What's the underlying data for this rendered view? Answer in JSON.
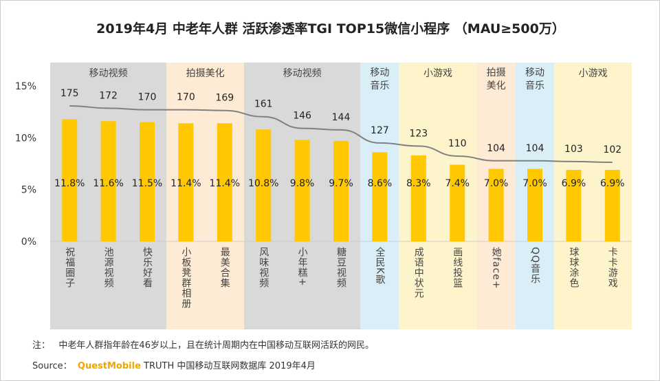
{
  "title": "2019年4月 中老年人群 活跃渗透率TGI TOP15微信小程序 （MAU≥500万）",
  "chart_data": {
    "type": "bar",
    "title": "2019年4月 中老年人群 活跃渗透率TGI TOP15微信小程序 （MAU≥500万）",
    "categories": [
      "祝福圈子",
      "池源视频",
      "快乐好看",
      "小板凳群相册",
      "最美合集",
      "风味视频",
      "小年糕+",
      "糖豆视频",
      "全民K歌",
      "成语中状元",
      "画线投篮",
      "她face+",
      "QQ音乐",
      "球球涂色",
      "卡卡游戏"
    ],
    "series": [
      {
        "type": "bar",
        "values": [
          11.8,
          11.6,
          11.5,
          11.4,
          11.4,
          10.8,
          9.8,
          9.7,
          8.6,
          8.3,
          7.4,
          7.0,
          7.0,
          6.9,
          6.9
        ],
        "labels": [
          "11.8%",
          "11.6%",
          "11.5%",
          "11.4%",
          "11.4%",
          "10.8%",
          "9.8%",
          "9.7%",
          "8.6%",
          "8.3%",
          "7.4%",
          "7.0%",
          "7.0%",
          "6.9%",
          "6.9%"
        ],
        "color": "#ffc800"
      },
      {
        "type": "line",
        "values": [
          175,
          172,
          170,
          170,
          169,
          161,
          146,
          144,
          127,
          123,
          110,
          104,
          104,
          103,
          102
        ],
        "color": "#808080"
      }
    ],
    "groups": [
      {
        "label": "移动视频",
        "span": 3,
        "color": "#d9d9d9"
      },
      {
        "label": "拍摄美化",
        "span": 2,
        "color": "#fdebd6"
      },
      {
        "label": "移动视频",
        "span": 3,
        "color": "#d9d9d9"
      },
      {
        "label": "移动\n音乐",
        "span": 1,
        "color": "#daeef8"
      },
      {
        "label": "小游戏",
        "span": 2,
        "color": "#fef4cc"
      },
      {
        "label": "拍摄\n美化",
        "span": 1,
        "color": "#fdebd6"
      },
      {
        "label": "移动\n音乐",
        "span": 1,
        "color": "#daeef8"
      },
      {
        "label": "小游戏",
        "span": 2,
        "color": "#fef4cc"
      }
    ],
    "yticks": [
      "0%",
      "5%",
      "10%",
      "15%"
    ],
    "ylim": [
      0,
      15
    ]
  },
  "footer": {
    "note_label": "注：",
    "note": "中老年人群指年龄在46岁以上，且在统计周期内在中国移动互联网活跃的网民。",
    "source_label": "Source：",
    "brand": "QuestMobile",
    "source": "TRUTH 中国移动互联网数据库 2019年4月"
  }
}
